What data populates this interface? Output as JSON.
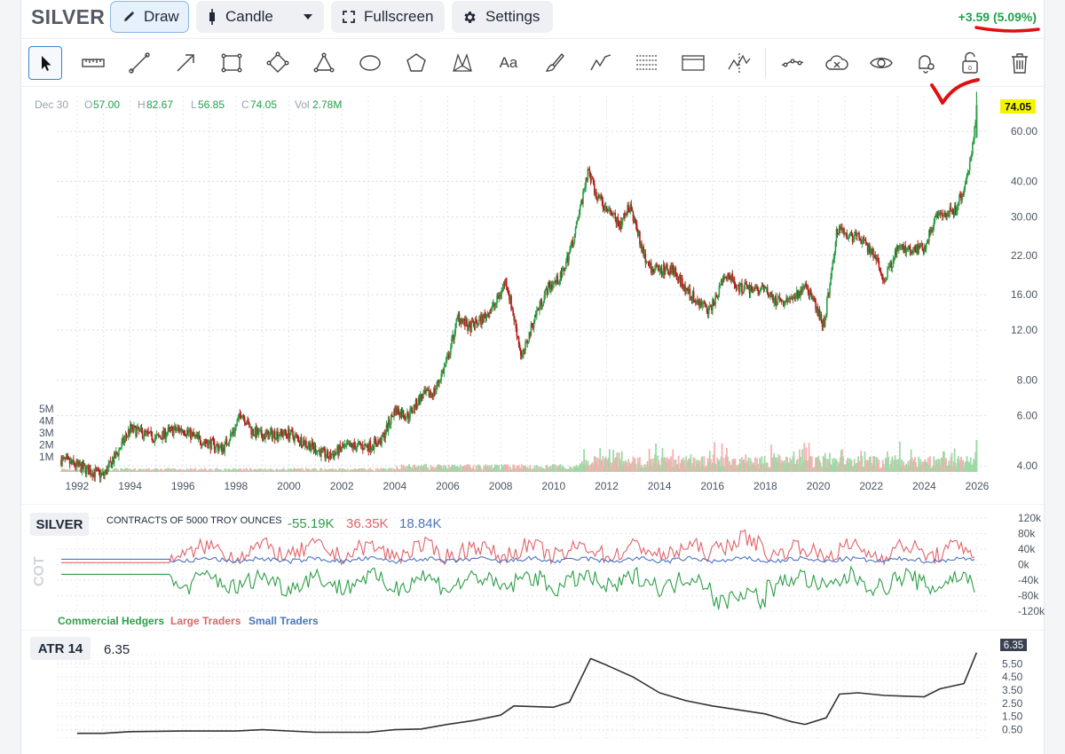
{
  "toolbar": {
    "symbol": "SILVER",
    "draw_label": "Draw",
    "chart_type_label": "Candle",
    "fullscreen_label": "Fullscreen",
    "settings_label": "Settings",
    "change_text": "+3.59 (5.09%)"
  },
  "drawing_tools": [
    {
      "name": "cursor-icon"
    },
    {
      "name": "ruler-icon"
    },
    {
      "name": "trend-line-icon"
    },
    {
      "name": "arrow-icon"
    },
    {
      "name": "rectangle-icon"
    },
    {
      "name": "rotated-rectangle-icon"
    },
    {
      "name": "triangle-icon"
    },
    {
      "name": "ellipse-icon"
    },
    {
      "name": "polygon-icon"
    },
    {
      "name": "xabcd-pattern-icon"
    },
    {
      "name": "text-icon",
      "label": "Aa"
    },
    {
      "name": "brush-icon"
    },
    {
      "name": "path-icon"
    },
    {
      "name": "fib-retracement-icon"
    },
    {
      "name": "price-range-icon"
    },
    {
      "name": "elliott-wave-icon"
    },
    {
      "name": "magnet-icon"
    },
    {
      "name": "hide-drawings-icon"
    },
    {
      "name": "visibility-icon"
    },
    {
      "name": "alert-bell-icon"
    },
    {
      "name": "lock-icon",
      "label": "0"
    },
    {
      "name": "trash-icon"
    }
  ],
  "legend": {
    "date": "Dec 30",
    "o_label": "O",
    "o": "57.00",
    "h_label": "H",
    "h": "82.67",
    "l_label": "L",
    "l": "56.85",
    "c_label": "C",
    "c": "74.05",
    "vol_label": "Vol",
    "vol": "2.78M"
  },
  "colors": {
    "up": "#2e9e48",
    "down": "#b91c1c",
    "vol_up": "#9ed9a6",
    "vol_down": "#f4b1b1",
    "last_price_bg": "#f5f500",
    "annotation": "#e01010"
  },
  "chart_data": [
    {
      "type": "line",
      "scale": "log",
      "x_ticks": [
        "1992",
        "1994",
        "1996",
        "1998",
        "2000",
        "2002",
        "2004",
        "2006",
        "2008",
        "2010",
        "2012",
        "2014",
        "2016",
        "2018",
        "2020",
        "2022",
        "2024",
        "2026"
      ],
      "y_ticks": [
        "60.00",
        "40.00",
        "30.00",
        "22.00",
        "16.00",
        "12.00",
        "8.00",
        "6.00",
        "4.00"
      ],
      "volume_ticks": [
        "5M",
        "4M",
        "3M",
        "2M",
        "1M"
      ],
      "last_price": "74.05",
      "ylim": [
        3.7,
        80
      ],
      "price_path": [
        [
          1991.4,
          4.2
        ],
        [
          1992.0,
          4.0
        ],
        [
          1992.6,
          3.8
        ],
        [
          1993.0,
          3.7
        ],
        [
          1993.5,
          4.4
        ],
        [
          1994.0,
          5.4
        ],
        [
          1994.5,
          5.2
        ],
        [
          1995.0,
          5.0
        ],
        [
          1995.5,
          5.3
        ],
        [
          1996.0,
          5.4
        ],
        [
          1996.5,
          5.0
        ],
        [
          1997.0,
          4.8
        ],
        [
          1997.5,
          4.6
        ],
        [
          1998.0,
          5.5
        ],
        [
          1998.2,
          6.2
        ],
        [
          1998.6,
          5.3
        ],
        [
          1999.0,
          5.1
        ],
        [
          1999.5,
          5.2
        ],
        [
          2000.0,
          5.2
        ],
        [
          2000.5,
          4.9
        ],
        [
          2001.0,
          4.6
        ],
        [
          2001.5,
          4.3
        ],
        [
          2002.0,
          4.6
        ],
        [
          2002.5,
          4.7
        ],
        [
          2003.0,
          4.7
        ],
        [
          2003.5,
          4.9
        ],
        [
          2004.0,
          6.3
        ],
        [
          2004.5,
          6.0
        ],
        [
          2005.0,
          7.0
        ],
        [
          2005.5,
          7.3
        ],
        [
          2006.0,
          9.5
        ],
        [
          2006.4,
          13.5
        ],
        [
          2006.8,
          12.2
        ],
        [
          2007.3,
          13.1
        ],
        [
          2007.8,
          14.8
        ],
        [
          2008.2,
          18.0
        ],
        [
          2008.6,
          12.0
        ],
        [
          2008.8,
          9.5
        ],
        [
          2009.3,
          13.5
        ],
        [
          2009.8,
          17.0
        ],
        [
          2010.3,
          18.5
        ],
        [
          2010.8,
          26.0
        ],
        [
          2011.3,
          44.0
        ],
        [
          2011.6,
          36.0
        ],
        [
          2012.0,
          32.0
        ],
        [
          2012.5,
          28.0
        ],
        [
          2012.9,
          33.0
        ],
        [
          2013.3,
          24.0
        ],
        [
          2013.6,
          20.0
        ],
        [
          2014.0,
          19.5
        ],
        [
          2014.5,
          19.8
        ],
        [
          2015.0,
          16.5
        ],
        [
          2015.5,
          15.0
        ],
        [
          2015.9,
          14.0
        ],
        [
          2016.5,
          19.0
        ],
        [
          2017.0,
          17.0
        ],
        [
          2017.5,
          16.8
        ],
        [
          2018.0,
          16.5
        ],
        [
          2018.5,
          15.0
        ],
        [
          2019.0,
          15.2
        ],
        [
          2019.5,
          17.5
        ],
        [
          2020.2,
          12.5
        ],
        [
          2020.5,
          19.0
        ],
        [
          2020.7,
          27.0
        ],
        [
          2021.0,
          26.0
        ],
        [
          2021.5,
          25.5
        ],
        [
          2022.0,
          23.0
        ],
        [
          2022.5,
          18.0
        ],
        [
          2023.0,
          23.0
        ],
        [
          2023.5,
          23.0
        ],
        [
          2024.0,
          23.5
        ],
        [
          2024.4,
          29.0
        ],
        [
          2024.8,
          31.0
        ],
        [
          2025.2,
          32.0
        ],
        [
          2025.5,
          38.0
        ],
        [
          2025.8,
          50.0
        ],
        [
          2025.98,
          74.05
        ]
      ]
    },
    {
      "type": "line",
      "title": "SILVER",
      "subtitle": "CONTRACTS OF 5000 TROY OUNCES",
      "axis_label": "COT",
      "y_ticks": [
        "120k",
        "80k",
        "40k",
        "0k",
        "-40k",
        "-80k",
        "-120k"
      ],
      "ylim": [
        -120000,
        120000
      ],
      "series": [
        {
          "name": "Commercial Hedgers",
          "last": "-55.19K",
          "color": "#2e9e48"
        },
        {
          "name": "Large Traders",
          "last": "36.35K",
          "color": "#e0646a"
        },
        {
          "name": "Small Traders",
          "last": "18.84K",
          "color": "#4a74c0"
        }
      ]
    },
    {
      "type": "line",
      "title": "ATR 14",
      "last": "6.35",
      "y_ticks": [
        "5.50",
        "4.50",
        "3.50",
        "2.50",
        "1.50",
        "0.50"
      ],
      "ylim": [
        0,
        6.6
      ],
      "path": [
        [
          1992.0,
          0.22
        ],
        [
          1993.0,
          0.22
        ],
        [
          1994.0,
          0.35
        ],
        [
          1996.0,
          0.4
        ],
        [
          1998.0,
          0.4
        ],
        [
          1999.0,
          0.5
        ],
        [
          2001.0,
          0.3
        ],
        [
          2003.0,
          0.3
        ],
        [
          2004.0,
          0.5
        ],
        [
          2005.0,
          0.55
        ],
        [
          2006.0,
          0.9
        ],
        [
          2007.0,
          1.2
        ],
        [
          2008.0,
          1.6
        ],
        [
          2008.5,
          2.3
        ],
        [
          2010.0,
          2.2
        ],
        [
          2010.6,
          2.6
        ],
        [
          2011.4,
          5.9
        ],
        [
          2012.0,
          5.4
        ],
        [
          2013.0,
          4.5
        ],
        [
          2014.0,
          3.3
        ],
        [
          2015.0,
          2.7
        ],
        [
          2016.0,
          2.3
        ],
        [
          2017.0,
          2.0
        ],
        [
          2018.0,
          1.7
        ],
        [
          2019.0,
          1.1
        ],
        [
          2019.5,
          0.9
        ],
        [
          2020.3,
          1.4
        ],
        [
          2020.8,
          3.2
        ],
        [
          2021.5,
          3.3
        ],
        [
          2022.5,
          3.1
        ],
        [
          2024.0,
          3.0
        ],
        [
          2024.6,
          3.6
        ],
        [
          2025.5,
          4.0
        ],
        [
          2025.98,
          6.35
        ]
      ]
    }
  ]
}
